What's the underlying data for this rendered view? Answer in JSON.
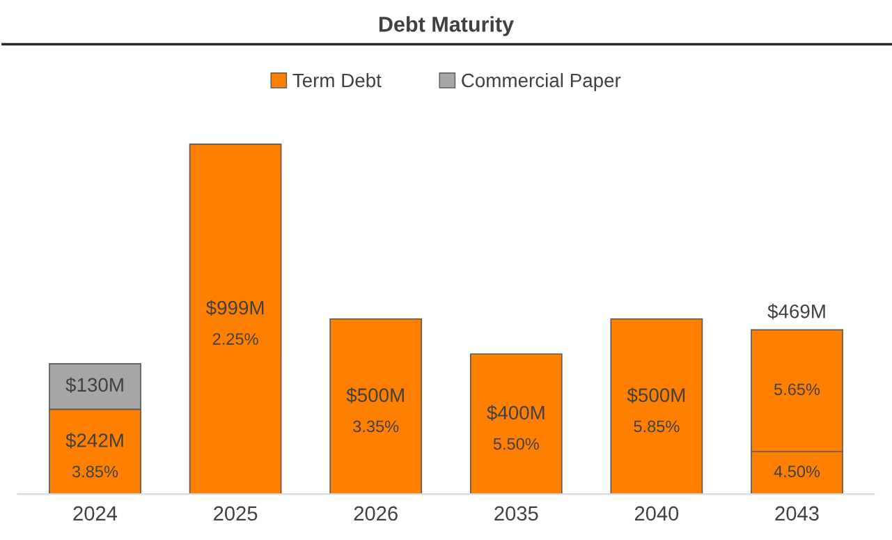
{
  "chart_data": {
    "type": "bar",
    "title": "Debt Maturity",
    "stacked": true,
    "categories": [
      "2024",
      "2025",
      "2026",
      "2035",
      "2040",
      "2043"
    ],
    "series": [
      {
        "name": "Term Debt",
        "color": "#ff8000",
        "values": [
          242,
          999,
          500,
          400,
          500,
          121
        ],
        "value_labels": [
          "$242M",
          "$999M",
          "$500M",
          "$400M",
          "$500M",
          null
        ]
      },
      {
        "color": "#ff8000",
        "values": [
          null,
          null,
          null,
          null,
          null,
          348
        ]
      },
      {
        "name": "Commercial Paper",
        "color": "#a6a6a6",
        "values": [
          130,
          null,
          null,
          null,
          null,
          null
        ],
        "value_labels": [
          "$130M",
          null,
          null,
          null,
          null,
          null
        ]
      }
    ],
    "totals": [
      null,
      null,
      null,
      null,
      null,
      "$469M"
    ],
    "annotations": [
      "3.85%",
      "2.25%",
      "3.35%",
      "5.50%",
      "5.85%",
      "4.50%",
      "5.65%"
    ],
    "legend": "top",
    "grid": false
  }
}
